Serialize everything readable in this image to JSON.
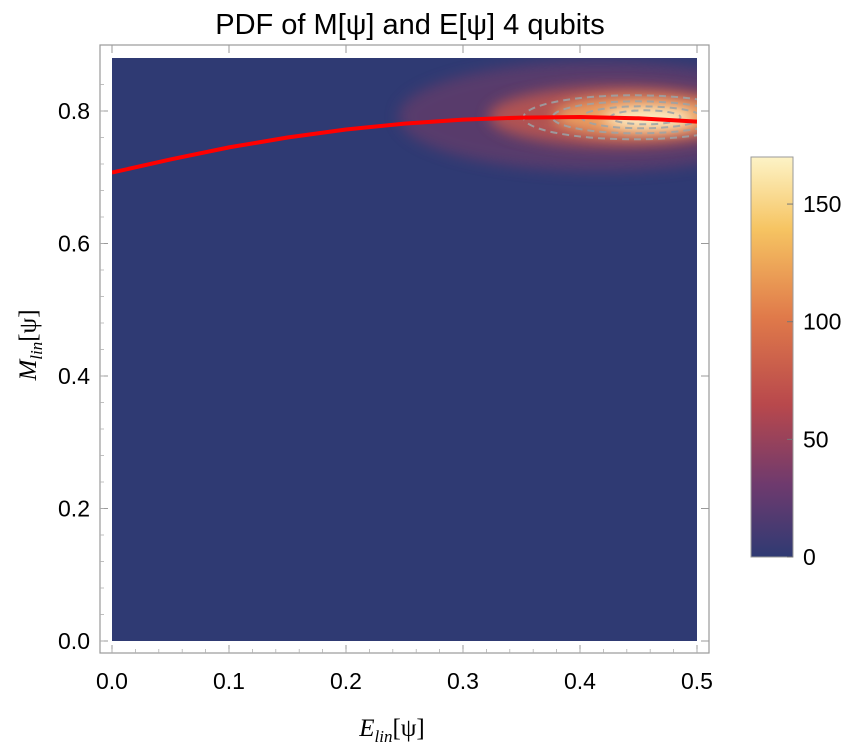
{
  "chart_data": {
    "type": "heatmap",
    "title": "PDF of M[ψ] and E[ψ] 4 qubits",
    "xlabel": {
      "main": "E",
      "sub": "lin",
      "arg": "[ψ]"
    },
    "ylabel": {
      "main": "M",
      "sub": "lin",
      "arg": "[ψ]"
    },
    "xlim": [
      0.0,
      0.5
    ],
    "ylim": [
      0.0,
      0.88
    ],
    "x_ticks": [
      "0.0",
      "0.1",
      "0.2",
      "0.3",
      "0.4",
      "0.5"
    ],
    "y_ticks": [
      "0.0",
      "0.2",
      "0.4",
      "0.6",
      "0.8"
    ],
    "colorbar": {
      "range": [
        0,
        170
      ],
      "ticks": [
        "0",
        "50",
        "100",
        "150"
      ],
      "colors": [
        "#2f3a73",
        "#6e3a6e",
        "#b8484c",
        "#e07a4a",
        "#f6c462",
        "#fdf3c6"
      ]
    },
    "density_peak": {
      "x": 0.45,
      "y": 0.792,
      "value": 170
    },
    "background_color": "#2f3a73",
    "fit_curve": {
      "color": "#ff0000",
      "x": [
        0.0,
        0.05,
        0.1,
        0.15,
        0.2,
        0.25,
        0.3,
        0.35,
        0.4,
        0.45,
        0.5
      ],
      "y": [
        0.707,
        0.727,
        0.745,
        0.76,
        0.772,
        0.781,
        0.787,
        0.79,
        0.791,
        0.789,
        0.784
      ]
    },
    "contours": {
      "color": "#9aa3a8",
      "style": "dashed"
    }
  }
}
